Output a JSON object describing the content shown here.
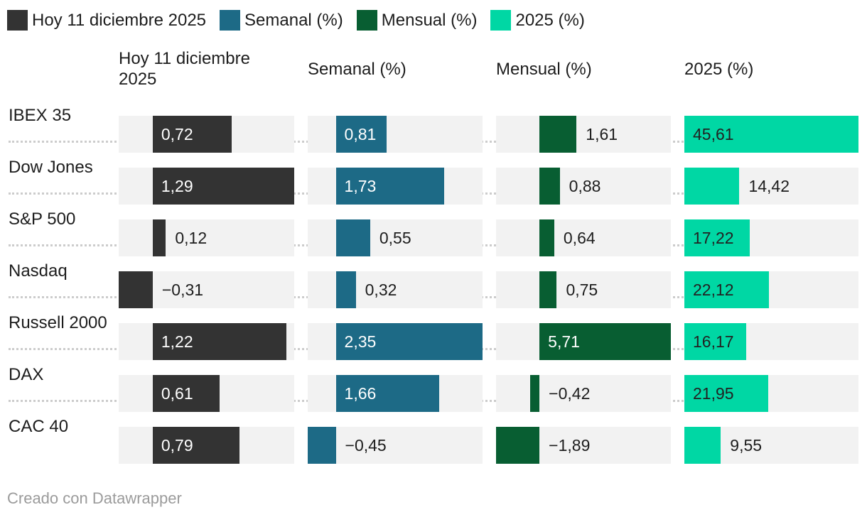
{
  "chart_data": {
    "type": "bar",
    "orientation": "horizontal",
    "title": "",
    "categories": [
      "IBEX 35",
      "Dow Jones",
      "S&P 500",
      "Nasdaq",
      "Russell 2000",
      "DAX",
      "CAC 40"
    ],
    "series": [
      {
        "name": "Hoy 11 diciembre 2025",
        "color": "#333333",
        "inside_label_color": "#ffffff",
        "values": [
          0.72,
          1.29,
          0.12,
          -0.31,
          1.22,
          0.61,
          0.79
        ],
        "labels": [
          "0,72",
          "1,29",
          "0,12",
          "−0,31",
          "1,22",
          "0,61",
          "0,79"
        ],
        "axis_range": [
          -0.31,
          1.29
        ]
      },
      {
        "name": "Semanal (%)",
        "color": "#1d6a86",
        "inside_label_color": "#ffffff",
        "values": [
          0.81,
          1.73,
          0.55,
          0.32,
          2.35,
          1.66,
          -0.45
        ],
        "labels": [
          "0,81",
          "1,73",
          "0,55",
          "0,32",
          "2,35",
          "1,66",
          "−0,45"
        ],
        "axis_range": [
          -0.45,
          2.35
        ]
      },
      {
        "name": "Mensual (%)",
        "color": "#085e32",
        "inside_label_color": "#ffffff",
        "values": [
          1.61,
          0.88,
          0.64,
          0.75,
          5.71,
          -0.42,
          -1.89
        ],
        "labels": [
          "1,61",
          "0,88",
          "0,64",
          "0,75",
          "5,71",
          "−0,42",
          "−1,89"
        ],
        "axis_range": [
          -1.89,
          5.71
        ]
      },
      {
        "name": "2025 (%)",
        "color": "#00d7a4",
        "inside_label_color": "#222222",
        "values": [
          45.61,
          14.42,
          17.22,
          22.12,
          16.17,
          21.95,
          9.55
        ],
        "labels": [
          "45,61",
          "14,42",
          "17,22",
          "22,12",
          "16,17",
          "21,95",
          "9,55"
        ],
        "axis_range": [
          0,
          45.61
        ]
      }
    ],
    "value_format": "decimal-comma",
    "outside_label_color": "#1d1d1d",
    "track_color": "#f2f2f2",
    "grid": false,
    "legend_position": "top"
  },
  "footer": {
    "credit": "Creado con Datawrapper"
  }
}
